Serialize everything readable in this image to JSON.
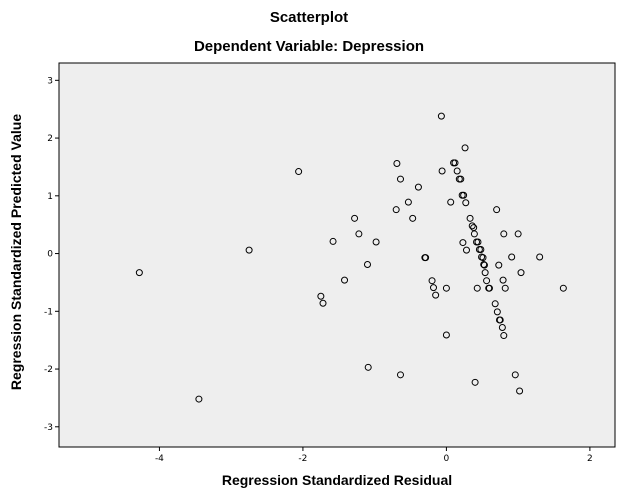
{
  "chart_data": {
    "type": "scatter",
    "title": "Scatterplot",
    "subtitle": "Dependent Variable: Depression",
    "xlabel": "Regression Standardized Residual",
    "ylabel": "Regression Standardized Predicted Value",
    "xlim": [
      -5.4,
      2.35
    ],
    "ylim": [
      -3.35,
      3.3
    ],
    "xticks": [
      -4,
      -2,
      0,
      2
    ],
    "yticks": [
      -3,
      -2,
      -1,
      0,
      1,
      2,
      3
    ],
    "xtick_labels": [
      "-4",
      "-2",
      "0",
      "2"
    ],
    "ytick_labels": [
      "-3",
      "-2",
      "-1",
      "0",
      "1",
      "2",
      "3"
    ],
    "grid": false,
    "plot_background": "#eeeeee",
    "marker_color": "#000000",
    "marker": "open-circle",
    "points": [
      [
        -4.28,
        -0.33
      ],
      [
        -3.45,
        -2.52
      ],
      [
        -2.75,
        0.06
      ],
      [
        -2.06,
        1.42
      ],
      [
        -1.75,
        -0.74
      ],
      [
        -1.72,
        -0.86
      ],
      [
        -1.58,
        0.21
      ],
      [
        -1.42,
        -0.46
      ],
      [
        -1.28,
        0.61
      ],
      [
        -1.22,
        0.34
      ],
      [
        -1.1,
        -0.19
      ],
      [
        -1.09,
        -1.97
      ],
      [
        -0.98,
        0.2
      ],
      [
        -0.7,
        0.76
      ],
      [
        -0.69,
        1.56
      ],
      [
        -0.64,
        1.29
      ],
      [
        -0.64,
        -2.1
      ],
      [
        -0.53,
        0.89
      ],
      [
        -0.47,
        0.61
      ],
      [
        -0.39,
        1.15
      ],
      [
        -0.3,
        -0.07
      ],
      [
        -0.29,
        -0.07
      ],
      [
        -0.2,
        -0.47
      ],
      [
        -0.18,
        -0.59
      ],
      [
        -0.15,
        -0.72
      ],
      [
        -0.07,
        2.38
      ],
      [
        -0.06,
        1.43
      ],
      [
        0.0,
        -0.6
      ],
      [
        0.0,
        -1.41
      ],
      [
        0.06,
        0.89
      ],
      [
        0.1,
        1.57
      ],
      [
        0.12,
        1.57
      ],
      [
        0.15,
        1.43
      ],
      [
        0.18,
        1.29
      ],
      [
        0.2,
        1.29
      ],
      [
        0.22,
        1.01
      ],
      [
        0.23,
        0.19
      ],
      [
        0.24,
        1.01
      ],
      [
        0.26,
        1.83
      ],
      [
        0.27,
        0.88
      ],
      [
        0.28,
        0.06
      ],
      [
        0.33,
        0.61
      ],
      [
        0.36,
        0.48
      ],
      [
        0.38,
        0.45
      ],
      [
        0.39,
        0.34
      ],
      [
        0.4,
        -2.23
      ],
      [
        0.42,
        0.2
      ],
      [
        0.43,
        -0.6
      ],
      [
        0.44,
        0.2
      ],
      [
        0.46,
        0.07
      ],
      [
        0.48,
        0.07
      ],
      [
        0.49,
        -0.06
      ],
      [
        0.51,
        -0.07
      ],
      [
        0.52,
        -0.19
      ],
      [
        0.53,
        -0.2
      ],
      [
        0.54,
        -0.33
      ],
      [
        0.56,
        -0.47
      ],
      [
        0.59,
        -0.6
      ],
      [
        0.6,
        -0.6
      ],
      [
        0.68,
        -0.87
      ],
      [
        0.7,
        0.76
      ],
      [
        0.71,
        -1.01
      ],
      [
        0.73,
        -0.2
      ],
      [
        0.74,
        -1.15
      ],
      [
        0.75,
        -1.15
      ],
      [
        0.78,
        -1.28
      ],
      [
        0.79,
        -0.46
      ],
      [
        0.8,
        0.34
      ],
      [
        0.8,
        -1.42
      ],
      [
        0.82,
        -0.6
      ],
      [
        0.91,
        -0.06
      ],
      [
        0.96,
        -2.1
      ],
      [
        1.0,
        0.34
      ],
      [
        1.02,
        -2.38
      ],
      [
        1.04,
        -0.33
      ],
      [
        1.3,
        -0.06
      ],
      [
        1.63,
        -0.6
      ]
    ]
  }
}
